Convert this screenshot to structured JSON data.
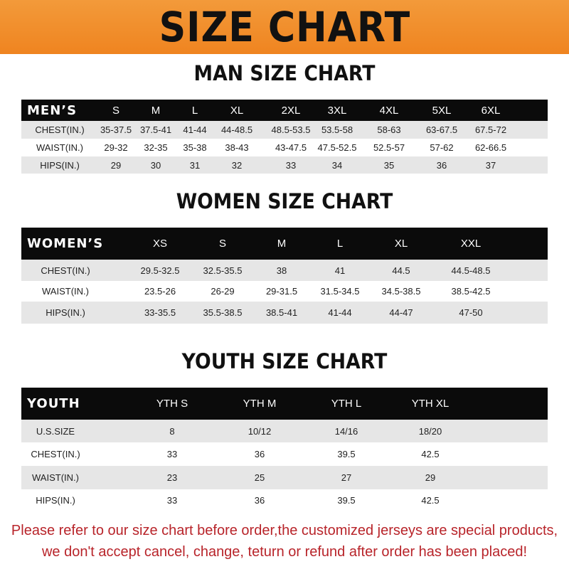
{
  "title": "SIZE CHART",
  "colors": {
    "banner": "#ef8420",
    "header_row": "#0b0b0b",
    "note": "#b8242a"
  },
  "men": {
    "heading": "MAN SIZE CHART",
    "header": [
      "MEN’S",
      "S",
      "M",
      "L",
      "XL",
      "2XL",
      "3XL",
      "4XL",
      "5XL",
      "6XL"
    ],
    "rows": [
      [
        "CHEST(IN.)",
        "35-37.5",
        "37.5-41",
        "41-44",
        "44-48.5",
        "48.5-53.5",
        "53.5-58",
        "58-63",
        "63-67.5",
        "67.5-72"
      ],
      [
        "WAIST(IN.)",
        "29-32",
        "32-35",
        "35-38",
        "38-43",
        "43-47.5",
        "47.5-52.5",
        "52.5-57",
        "57-62",
        "62-66.5"
      ],
      [
        "HIPS(IN.)",
        "29",
        "30",
        "31",
        "32",
        "33",
        "34",
        "35",
        "36",
        "37"
      ]
    ]
  },
  "women": {
    "heading": "WOMEN SIZE CHART",
    "header": [
      "WOMEN’S",
      "XS",
      "S",
      "M",
      "L",
      "XL",
      "XXL"
    ],
    "rows": [
      [
        "CHEST(IN.)",
        "29.5-32.5",
        "32.5-35.5",
        "38",
        "41",
        "44.5",
        "44.5-48.5"
      ],
      [
        "WAIST(IN.)",
        "23.5-26",
        "26-29",
        "29-31.5",
        "31.5-34.5",
        "34.5-38.5",
        "38.5-42.5"
      ],
      [
        "HIPS(IN.)",
        "33-35.5",
        "35.5-38.5",
        "38.5-41",
        "41-44",
        "44-47",
        "47-50"
      ]
    ]
  },
  "youth": {
    "heading": "YOUTH SIZE CHART",
    "header": [
      "YOUTH",
      "YTH S",
      "YTH M",
      "YTH L",
      "YTH XL"
    ],
    "rows": [
      [
        "U.S.SIZE",
        "8",
        "10/12",
        "14/16",
        "18/20"
      ],
      [
        "CHEST(IN.)",
        "33",
        "36",
        "39.5",
        "42.5"
      ],
      [
        "WAIST(IN.)",
        "23",
        "25",
        "27",
        "29"
      ],
      [
        "HIPS(IN.)",
        "33",
        "36",
        "39.5",
        "42.5"
      ]
    ]
  },
  "note": {
    "line1": "Please refer to our size chart before order,the customized jerseys are special products,",
    "line2": "we don't accept cancel, change, teturn or refund after order has been placed!"
  }
}
